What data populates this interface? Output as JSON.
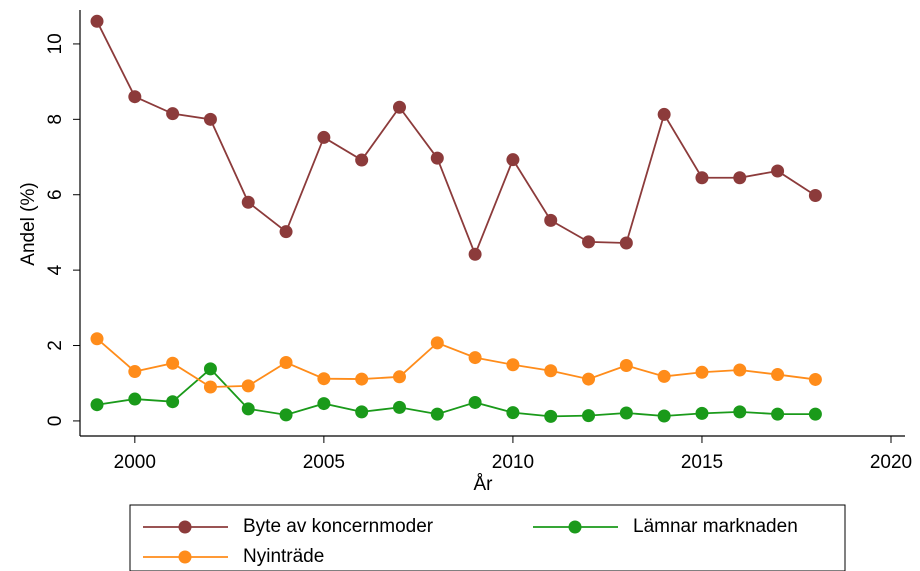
{
  "chart_data": {
    "type": "line",
    "x": [
      1999,
      2000,
      2001,
      2002,
      2003,
      2004,
      2005,
      2006,
      2007,
      2008,
      2009,
      2010,
      2011,
      2012,
      2013,
      2014,
      2015,
      2016,
      2017,
      2018
    ],
    "series": [
      {
        "name": "Byte av koncernmoder",
        "color": "#8c3b3b",
        "values": [
          10.6,
          8.6,
          8.15,
          8.0,
          5.8,
          5.02,
          7.52,
          6.92,
          8.32,
          6.97,
          4.42,
          6.93,
          5.32,
          4.75,
          4.72,
          8.13,
          6.45,
          6.45,
          6.63,
          5.98
        ]
      },
      {
        "name": "Lämnar marknaden",
        "color": "#1a9a1a",
        "values": [
          0.43,
          0.58,
          0.51,
          1.38,
          0.32,
          0.16,
          0.46,
          0.24,
          0.36,
          0.18,
          0.49,
          0.22,
          0.12,
          0.14,
          0.21,
          0.13,
          0.2,
          0.24,
          0.18,
          0.18
        ]
      },
      {
        "name": "Nyinträde",
        "color": "#ff8c1a",
        "values": [
          2.18,
          1.31,
          1.53,
          0.9,
          0.93,
          1.55,
          1.12,
          1.11,
          1.17,
          2.07,
          1.68,
          1.49,
          1.33,
          1.11,
          1.47,
          1.18,
          1.29,
          1.35,
          1.23,
          1.1
        ]
      }
    ],
    "xlabel": "År",
    "ylabel": "Andel (%)",
    "xlim": [
      1998.55,
      2020.37
    ],
    "xticks": [
      2000,
      2005,
      2010,
      2015,
      2020
    ],
    "ylim": [
      -0.4,
      10.9
    ],
    "yticks": [
      0,
      2,
      4,
      6,
      8,
      10
    ],
    "grid": false,
    "legend": "bottom"
  }
}
